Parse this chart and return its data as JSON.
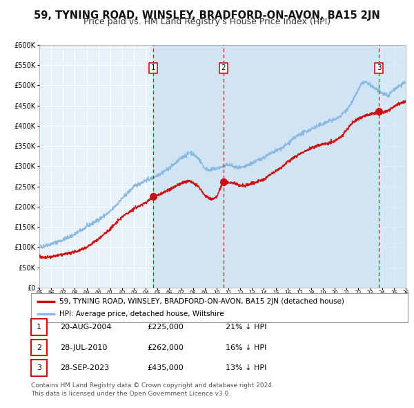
{
  "title": "59, TYNING ROAD, WINSLEY, BRADFORD-ON-AVON, BA15 2JN",
  "subtitle": "Price paid vs. HM Land Registry's House Price Index (HPI)",
  "ylim": [
    0,
    600000
  ],
  "yticks": [
    0,
    50000,
    100000,
    150000,
    200000,
    250000,
    300000,
    350000,
    400000,
    450000,
    500000,
    550000,
    600000
  ],
  "background_color": "#ffffff",
  "plot_bg_color": "#e8f0f8",
  "grid_color": "#ffffff",
  "hpi_line_color": "#88b8e0",
  "price_line_color": "#cc1111",
  "marker_color": "#cc1111",
  "vline_color": "#cc1111",
  "shade_color": "#d0e4f4",
  "hatch_color": "#d8e8f4",
  "title_fontsize": 10.5,
  "subtitle_fontsize": 9,
  "legend_label_property": "59, TYNING ROAD, WINSLEY, BRADFORD-ON-AVON, BA15 2JN (detached house)",
  "legend_label_hpi": "HPI: Average price, detached house, Wiltshire",
  "transactions": [
    {
      "label": "1",
      "date_num": 2004.64,
      "price": 225000,
      "text": "20-AUG-2004",
      "amount": "£225,000",
      "hpi_pct": "21% ↓ HPI"
    },
    {
      "label": "2",
      "date_num": 2010.57,
      "price": 262000,
      "text": "28-JUL-2010",
      "amount": "£262,000",
      "hpi_pct": "16% ↓ HPI"
    },
    {
      "label": "3",
      "date_num": 2023.74,
      "price": 435000,
      "text": "28-SEP-2023",
      "amount": "£435,000",
      "hpi_pct": "13% ↓ HPI"
    }
  ],
  "footnote1": "Contains HM Land Registry data © Crown copyright and database right 2024.",
  "footnote2": "This data is licensed under the Open Government Licence v3.0.",
  "xmin": 1995,
  "xmax": 2026
}
